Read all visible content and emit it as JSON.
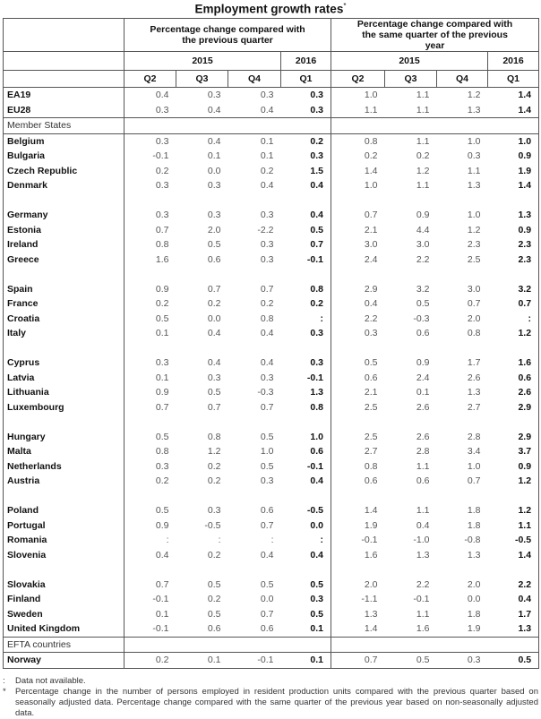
{
  "title": "Employment growth rates",
  "title_marker": "*",
  "header": {
    "group_prev_quarter": "Percentage change compared with the previous quarter",
    "group_prev_year": "Percentage change compared with the same quarter of the previous year",
    "year_2015": "2015",
    "year_2016": "2016",
    "quarters": [
      "Q2",
      "Q3",
      "Q4",
      "Q1"
    ]
  },
  "aggregates": [
    {
      "name": "EA19",
      "qoq": [
        "0.4",
        "0.3",
        "0.3",
        "0.3"
      ],
      "yoy": [
        "1.0",
        "1.1",
        "1.2",
        "1.4"
      ]
    },
    {
      "name": "EU28",
      "qoq": [
        "0.3",
        "0.4",
        "0.4",
        "0.3"
      ],
      "yoy": [
        "1.1",
        "1.1",
        "1.3",
        "1.4"
      ]
    }
  ],
  "member_states_label": "Member States",
  "member_state_groups": [
    [
      {
        "name": "Belgium",
        "qoq": [
          "0.3",
          "0.4",
          "0.1",
          "0.2"
        ],
        "yoy": [
          "0.8",
          "1.1",
          "1.0",
          "1.0"
        ]
      },
      {
        "name": "Bulgaria",
        "qoq": [
          "-0.1",
          "0.1",
          "0.1",
          "0.3"
        ],
        "yoy": [
          "0.2",
          "0.2",
          "0.3",
          "0.9"
        ]
      },
      {
        "name": "Czech Republic",
        "qoq": [
          "0.2",
          "0.0",
          "0.2",
          "1.5"
        ],
        "yoy": [
          "1.4",
          "1.2",
          "1.1",
          "1.9"
        ]
      },
      {
        "name": "Denmark",
        "qoq": [
          "0.3",
          "0.3",
          "0.4",
          "0.4"
        ],
        "yoy": [
          "1.0",
          "1.1",
          "1.3",
          "1.4"
        ]
      }
    ],
    [
      {
        "name": "Germany",
        "qoq": [
          "0.3",
          "0.3",
          "0.3",
          "0.4"
        ],
        "yoy": [
          "0.7",
          "0.9",
          "1.0",
          "1.3"
        ]
      },
      {
        "name": "Estonia",
        "qoq": [
          "0.7",
          "2.0",
          "-2.2",
          "0.5"
        ],
        "yoy": [
          "2.1",
          "4.4",
          "1.2",
          "0.9"
        ]
      },
      {
        "name": "Ireland",
        "qoq": [
          "0.8",
          "0.5",
          "0.3",
          "0.7"
        ],
        "yoy": [
          "3.0",
          "3.0",
          "2.3",
          "2.3"
        ]
      },
      {
        "name": "Greece",
        "qoq": [
          "1.6",
          "0.6",
          "0.3",
          "-0.1"
        ],
        "yoy": [
          "2.4",
          "2.2",
          "2.5",
          "2.3"
        ]
      }
    ],
    [
      {
        "name": "Spain",
        "qoq": [
          "0.9",
          "0.7",
          "0.7",
          "0.8"
        ],
        "yoy": [
          "2.9",
          "3.2",
          "3.0",
          "3.2"
        ]
      },
      {
        "name": "France",
        "qoq": [
          "0.2",
          "0.2",
          "0.2",
          "0.2"
        ],
        "yoy": [
          "0.4",
          "0.5",
          "0.7",
          "0.7"
        ]
      },
      {
        "name": "Croatia",
        "qoq": [
          "0.5",
          "0.0",
          "0.8",
          ":"
        ],
        "yoy": [
          "2.2",
          "-0.3",
          "2.0",
          ":"
        ]
      },
      {
        "name": "Italy",
        "qoq": [
          "0.1",
          "0.4",
          "0.4",
          "0.3"
        ],
        "yoy": [
          "0.3",
          "0.6",
          "0.8",
          "1.2"
        ]
      }
    ],
    [
      {
        "name": "Cyprus",
        "qoq": [
          "0.3",
          "0.4",
          "0.4",
          "0.3"
        ],
        "yoy": [
          "0.5",
          "0.9",
          "1.7",
          "1.6"
        ]
      },
      {
        "name": "Latvia",
        "qoq": [
          "0.1",
          "0.3",
          "0.3",
          "-0.1"
        ],
        "yoy": [
          "0.6",
          "2.4",
          "2.6",
          "0.6"
        ]
      },
      {
        "name": "Lithuania",
        "qoq": [
          "0.9",
          "0.5",
          "-0.3",
          "1.3"
        ],
        "yoy": [
          "2.1",
          "0.1",
          "1.3",
          "2.6"
        ]
      },
      {
        "name": "Luxembourg",
        "qoq": [
          "0.7",
          "0.7",
          "0.7",
          "0.8"
        ],
        "yoy": [
          "2.5",
          "2.6",
          "2.7",
          "2.9"
        ]
      }
    ],
    [
      {
        "name": "Hungary",
        "qoq": [
          "0.5",
          "0.8",
          "0.5",
          "1.0"
        ],
        "yoy": [
          "2.5",
          "2.6",
          "2.8",
          "2.9"
        ]
      },
      {
        "name": "Malta",
        "qoq": [
          "0.8",
          "1.2",
          "1.0",
          "0.6"
        ],
        "yoy": [
          "2.7",
          "2.8",
          "3.4",
          "3.7"
        ]
      },
      {
        "name": "Netherlands",
        "qoq": [
          "0.3",
          "0.2",
          "0.5",
          "-0.1"
        ],
        "yoy": [
          "0.8",
          "1.1",
          "1.0",
          "0.9"
        ]
      },
      {
        "name": "Austria",
        "qoq": [
          "0.2",
          "0.2",
          "0.3",
          "0.4"
        ],
        "yoy": [
          "0.6",
          "0.6",
          "0.7",
          "1.2"
        ]
      }
    ],
    [
      {
        "name": "Poland",
        "qoq": [
          "0.5",
          "0.3",
          "0.6",
          "-0.5"
        ],
        "yoy": [
          "1.4",
          "1.1",
          "1.8",
          "1.2"
        ]
      },
      {
        "name": "Portugal",
        "qoq": [
          "0.9",
          "-0.5",
          "0.7",
          "0.0"
        ],
        "yoy": [
          "1.9",
          "0.4",
          "1.8",
          "1.1"
        ]
      },
      {
        "name": "Romania",
        "qoq": [
          ":",
          ":",
          ":",
          ":"
        ],
        "yoy": [
          "-0.1",
          "-1.0",
          "-0.8",
          "-0.5"
        ]
      },
      {
        "name": "Slovenia",
        "qoq": [
          "0.4",
          "0.2",
          "0.4",
          "0.4"
        ],
        "yoy": [
          "1.6",
          "1.3",
          "1.3",
          "1.4"
        ]
      }
    ],
    [
      {
        "name": "Slovakia",
        "qoq": [
          "0.7",
          "0.5",
          "0.5",
          "0.5"
        ],
        "yoy": [
          "2.0",
          "2.2",
          "2.0",
          "2.2"
        ]
      },
      {
        "name": "Finland",
        "qoq": [
          "-0.1",
          "0.2",
          "0.0",
          "0.3"
        ],
        "yoy": [
          "-1.1",
          "-0.1",
          "0.0",
          "0.4"
        ]
      },
      {
        "name": "Sweden",
        "qoq": [
          "0.1",
          "0.5",
          "0.7",
          "0.5"
        ],
        "yoy": [
          "1.3",
          "1.1",
          "1.8",
          "1.7"
        ]
      },
      {
        "name": "United Kingdom",
        "qoq": [
          "-0.1",
          "0.6",
          "0.6",
          "0.1"
        ],
        "yoy": [
          "1.4",
          "1.6",
          "1.9",
          "1.3"
        ]
      }
    ]
  ],
  "efta_label": "EFTA countries",
  "efta": [
    {
      "name": "Norway",
      "qoq": [
        "0.2",
        "0.1",
        "-0.1",
        "0.1"
      ],
      "yoy": [
        "0.7",
        "0.5",
        "0.3",
        "0.5"
      ]
    }
  ],
  "footnotes": [
    {
      "marker": ":",
      "text": "Data not available."
    },
    {
      "marker": "*",
      "text": "Percentage change in the number of persons employed in resident production units compared with the previous quarter based on seasonally adjusted data. Percentage change compared with the same quarter of the previous year based on non-seasonally adjusted data."
    }
  ]
}
